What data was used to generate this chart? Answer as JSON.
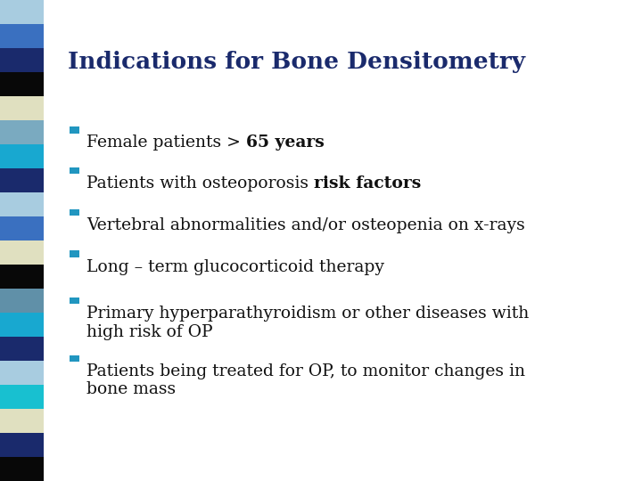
{
  "title": "Indications for Bone Densitometry",
  "title_color": "#1a2a6c",
  "title_fontsize": 19,
  "background_color": "#ffffff",
  "bullet_sq_color": "#2196c0",
  "text_color": "#111111",
  "bullet_items": [
    {
      "plain": "Female patients > ",
      "bold": "65 years"
    },
    {
      "plain": "Patients with osteoporosis ",
      "bold": "risk factors"
    },
    {
      "plain": "Vertebral abnormalities and/or osteopenia on x-rays",
      "bold": ""
    },
    {
      "plain": "Long – term glucocorticoid therapy",
      "bold": ""
    },
    {
      "plain": "Primary hyperparathyroidism or other diseases with\nhigh risk of OP",
      "bold": ""
    },
    {
      "plain": "Patients being treated for OP, to monitor changes in\nbone mass",
      "bold": ""
    }
  ],
  "sidebar_colors": [
    "#a8cce0",
    "#3a70c0",
    "#1a2a6c",
    "#080808",
    "#e0e0c0",
    "#7aaac0",
    "#18a8d0",
    "#1a2a6c",
    "#a8cce0",
    "#3a70c0",
    "#e0e0c0",
    "#080808",
    "#6090a8",
    "#18a8d0",
    "#1a2a6c",
    "#a8cce0",
    "#18c0d0",
    "#e0e0c0",
    "#1a2a6c",
    "#080808"
  ],
  "text_fontsize": 13.5
}
